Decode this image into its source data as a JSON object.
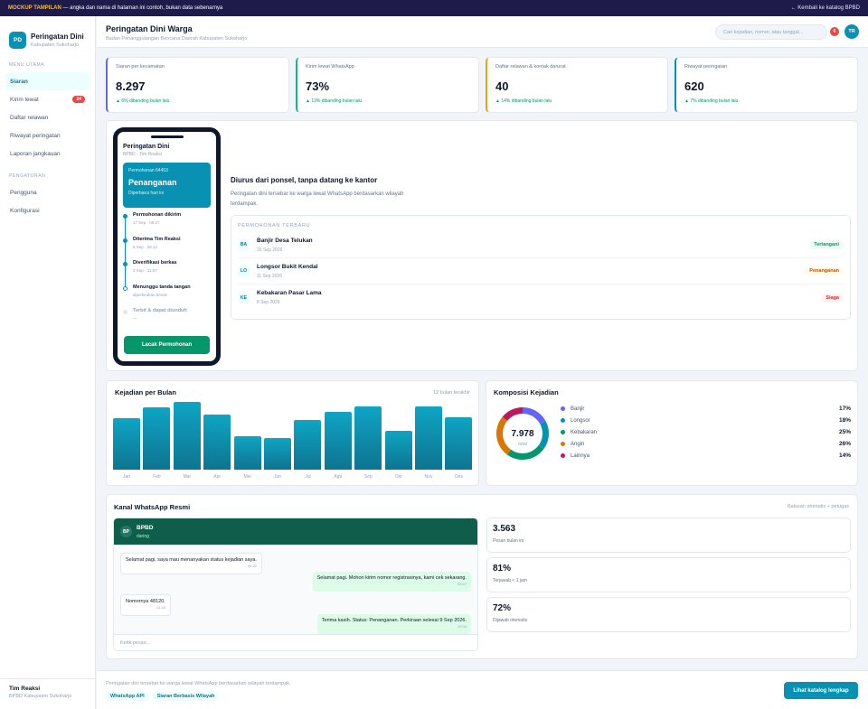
{
  "topbar": {
    "tag": "MOCKUP TAMPILAN",
    "notice": " — angka dan nama di halaman ini contoh, bukan data sebenarnya",
    "back_link": "← Kembali ke katalog BPBD"
  },
  "sidebar": {
    "logo": "PD",
    "title": "Peringatan Dini",
    "subtitle": "Kabupaten Sukoharjo",
    "section_main": "MENU UTAMA",
    "items_main": [
      {
        "label": "Siaran",
        "active": true
      },
      {
        "label": "Kirim lewat",
        "badge": "24"
      },
      {
        "label": "Daftar relawan"
      },
      {
        "label": "Riwayat peringatan"
      },
      {
        "label": "Laporan jangkauan"
      }
    ],
    "section_settings": "PENGATURAN",
    "items_settings": [
      {
        "label": "Pengguna"
      },
      {
        "label": "Konfigurasi"
      }
    ],
    "footer_name": "Tim Reaksi",
    "footer_org": "BPBD Kabupaten Sukoharjo"
  },
  "header": {
    "title": "Peringatan Dini Warga",
    "subtitle": "Badan Penanggulangan Bencana Daerah Kabupaten Sukoharjo",
    "search_placeholder": "Cari kejadian, nomor, atau tanggal...",
    "notif_count": "6",
    "avatar": "TR"
  },
  "stats": [
    {
      "label": "Siaran per kecamatan",
      "value": "8.297",
      "change": "▲ 6% dibanding bulan lalu",
      "accent": "#6366f1"
    },
    {
      "label": "Kirim lewat WhatsApp",
      "value": "73%",
      "change": "▲ 13% dibanding bulan lalu",
      "accent": "#10b981"
    },
    {
      "label": "Daftar relawan & kontak darurat",
      "value": "40",
      "change": "▲ 14% dibanding bulan lalu",
      "accent": "#f59e0b"
    },
    {
      "label": "Riwayat peringatan",
      "value": "620",
      "change": "▲ 7% dibanding bulan lalu",
      "accent": "#0891b2"
    }
  ],
  "phone": {
    "title": "Peringatan Dini",
    "subtitle": "BPBD · Tim Reaksi",
    "card_id": "Permohonan 64453",
    "card_status": "Penanganan",
    "card_updated": "Diperbarui hari ini",
    "timeline": [
      {
        "title": "Permohonan dikirim",
        "date": "17 Sep · 09.27",
        "state": "done"
      },
      {
        "title": "Diterima Tim Reaksi",
        "date": "6 Sep · 08.12",
        "state": "done"
      },
      {
        "title": "Diverifikasi berkas",
        "date": "2 Sep · 11.07",
        "state": "done"
      },
      {
        "title": "Menunggu tanda tangan",
        "date": "diperkirakan besok",
        "state": "current"
      },
      {
        "title": "Terbit & dapat diunduh",
        "date": "—",
        "state": "pending"
      }
    ],
    "button": "Lacak Permohonan"
  },
  "feature": {
    "title": "Diurus dari ponsel, tanpa datang ke kantor",
    "desc": "Peringatan dini tersebar ke warga lewat WhatsApp berdasarkan wilayah terdampak."
  },
  "requests": {
    "heading": "PERMOHONAN TERBARU",
    "items": [
      {
        "icon": "BA",
        "title": "Banjir Desa Telukan",
        "date": "20 Sep 2026",
        "status": "Tertangani",
        "tone": "g"
      },
      {
        "icon": "LO",
        "title": "Longsor Bukit Kendal",
        "date": "11 Sep 2026",
        "status": "Penanganan",
        "tone": "y"
      },
      {
        "icon": "KE",
        "title": "Kebakaran Pasar Lama",
        "date": "8 Sep 2026",
        "status": "Siaga",
        "tone": "r"
      }
    ]
  },
  "monthly": {
    "title": "Kejadian per Bulan",
    "note": "12 bulan terakhir"
  },
  "chart_data": [
    {
      "type": "bar",
      "title": "Kejadian per Bulan",
      "categories": [
        "Jan",
        "Feb",
        "Mar",
        "Apr",
        "Mei",
        "Jun",
        "Jul",
        "Agu",
        "Sep",
        "Okt",
        "Nov",
        "Des"
      ],
      "values": [
        76,
        92,
        100,
        81,
        49,
        47,
        74,
        85,
        93,
        58,
        93,
        77
      ],
      "ylim": [
        0,
        100
      ],
      "grid": false
    },
    {
      "type": "pie",
      "title": "Komposisi Kejadian",
      "center_value": "7.978",
      "center_label": "total",
      "categories": [
        "Banjir",
        "Longsor",
        "Kebakaran",
        "Angin",
        "Lainnya"
      ],
      "values": [
        17,
        18,
        25,
        26,
        14
      ],
      "value_labels": [
        "17%",
        "18%",
        "25%",
        "26%",
        "14%"
      ],
      "colors": [
        "#6366f1",
        "#0891b2",
        "#059669",
        "#d97706",
        "#be185d"
      ]
    }
  ],
  "whatsapp": {
    "title": "Kanal WhatsApp Resmi",
    "note": "Balasan otomatis + petugas",
    "contact_avatar": "BP",
    "contact_name": "BPBD",
    "contact_status": "daring",
    "messages": [
      {
        "dir": "in",
        "text": "Selamat pagi, saya mau menanyakan status kejadian saya.",
        "time": "09.02"
      },
      {
        "dir": "out",
        "text": "Selamat pagi. Mohon kirim nomor registrasinya, kami cek sekarang.",
        "time": "09.47"
      },
      {
        "dir": "in",
        "text": "Nomornya 48120.",
        "time": "14.18"
      },
      {
        "dir": "out",
        "text": "Terima kasih. Status: Penanganan. Perkiraan selesai 9 Sep 2026.",
        "time": "10.04"
      }
    ],
    "input_placeholder": "Ketik pesan...",
    "metrics": [
      {
        "value": "3.563",
        "label": "Pesan bulan ini"
      },
      {
        "value": "81%",
        "label": "Terjawab < 1 jam"
      },
      {
        "value": "72%",
        "label": "Dijawab otomatis"
      }
    ]
  },
  "footer": {
    "text": "Peringatan dini tersebar ke warga lewat WhatsApp berdasarkan wilayah terdampak.",
    "tags": [
      "WhatsApp API",
      "Siaran Berbasis Wilayah"
    ],
    "button": "Lihat katalog lengkap"
  }
}
